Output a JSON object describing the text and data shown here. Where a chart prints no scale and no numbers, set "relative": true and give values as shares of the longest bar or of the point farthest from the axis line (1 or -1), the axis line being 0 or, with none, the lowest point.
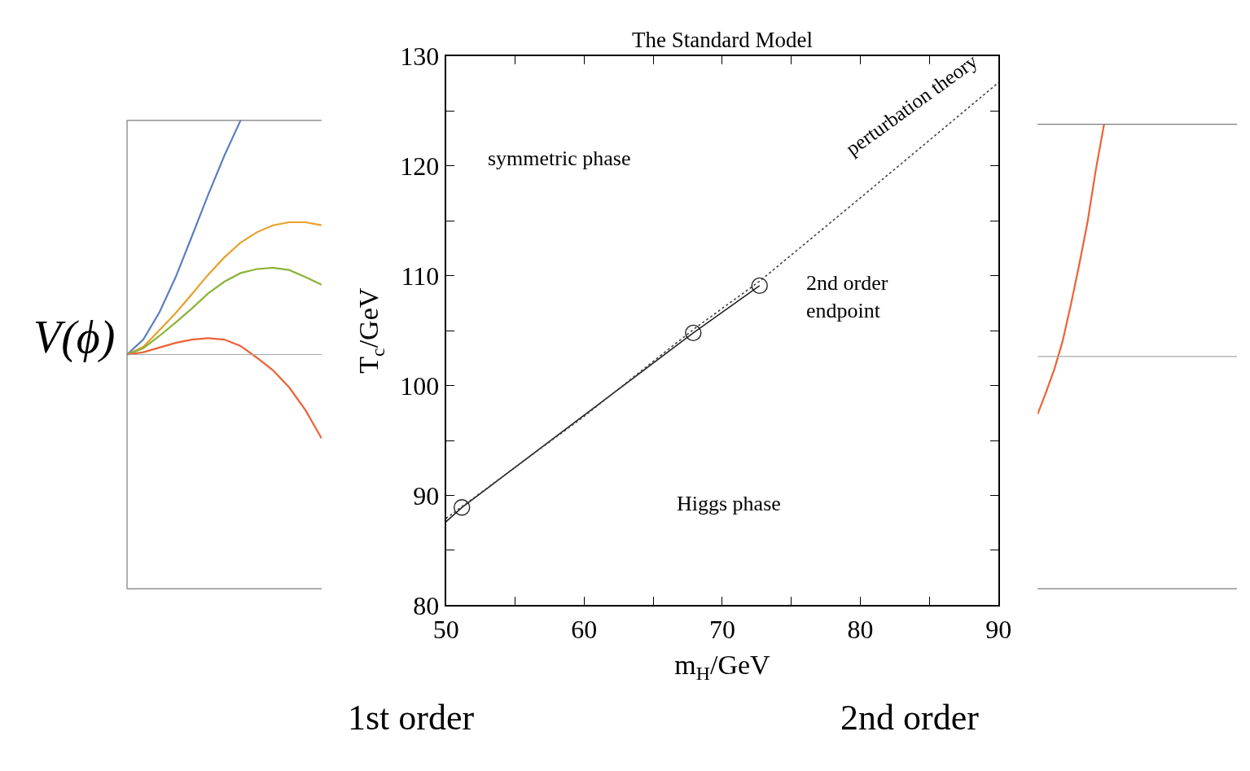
{
  "chart_data": [
    {
      "type": "line",
      "relative": true,
      "ylabel": "V(ϕ)",
      "xlabel": "1st order",
      "categories": [
        null,
        null,
        null,
        null,
        null,
        null,
        null,
        null,
        null,
        null,
        null,
        null,
        null
      ],
      "series": [
        {
          "color": "#5b7fbf",
          "values": [
            0,
            0.064,
            0.181,
            0.331,
            0.505,
            0.682,
            0.849,
            1,
            null,
            null,
            null,
            null,
            null
          ]
        },
        {
          "color": "#e8a02a",
          "values": [
            0,
            0.033,
            0.104,
            0.177,
            0.258,
            0.341,
            0.415,
            0.478,
            0.522,
            0.552,
            0.565,
            0.565,
            0.552
          ]
        },
        {
          "color": "#8db33a",
          "values": [
            0,
            0.027,
            0.08,
            0.137,
            0.197,
            0.261,
            0.311,
            0.348,
            0.365,
            0.371,
            0.361,
            0.331,
            0.298
          ]
        },
        {
          "color": "#ec6236",
          "values": [
            0,
            0.01,
            0.03,
            0.05,
            0.064,
            0.07,
            0.064,
            0.037,
            -0.013,
            -0.067,
            -0.14,
            -0.237,
            -0.358
          ]
        }
      ]
    },
    {
      "type": "line",
      "title": "The Standard Model",
      "xlabel": "m$_{H}$/GeV",
      "ylabel": "T$_{c}$/GeV",
      "xlim": [
        50,
        90
      ],
      "ylim": [
        80,
        130
      ],
      "xticks": [
        50,
        {
          "value": 55,
          "label": null
        },
        60,
        {
          "value": 65,
          "label": null
        },
        70,
        {
          "value": 75,
          "label": null
        },
        80,
        {
          "value": 85,
          "label": null
        },
        90
      ],
      "yticks": [
        80,
        {
          "value": 85,
          "label": null
        },
        90,
        {
          "value": 95,
          "label": null
        },
        100,
        {
          "value": 105,
          "label": null
        },
        110,
        {
          "value": 115,
          "label": null
        },
        120,
        {
          "value": 125,
          "label": null
        },
        130
      ],
      "legend": false,
      "series": [
        {
          "type": "line",
          "color": "#222222",
          "line_style": "solid",
          "marker": "none",
          "x": [
            50,
            51.15,
            67.9,
            72.7
          ],
          "values": [
            87.6,
            88.9,
            104.8,
            109.1
          ]
        },
        {
          "type": "scatter",
          "color": "#222222",
          "marker": "circle",
          "x": [
            51.15,
            67.9,
            72.7
          ],
          "values": [
            88.9,
            104.8,
            109.1
          ]
        },
        {
          "type": "line",
          "name": "perturbation theory",
          "color": "#444444",
          "line_style": "dotted",
          "marker": "none",
          "x": [
            50,
            60,
            68,
            72.7,
            80,
            90
          ],
          "values": [
            87.9,
            97.2,
            105.2,
            109.5,
            117.1,
            127.6
          ]
        }
      ],
      "annotations": [
        "symmetric phase",
        "2nd order\nendpoint",
        "Higgs phase"
      ]
    },
    {
      "type": "line",
      "relative": true,
      "xlabel": "2nd order",
      "categories": [
        null,
        null,
        null,
        null,
        null,
        null,
        null,
        null,
        null,
        null,
        null,
        null,
        null,
        null,
        null,
        null,
        null,
        null,
        null,
        null,
        null,
        null,
        null,
        null,
        null
      ],
      "series": [
        {
          "color": "#ec6236",
          "values": [
            -0.248,
            -0.155,
            -0.056,
            0.065,
            0.223,
            0.394,
            0.577,
            0.803,
            1,
            null,
            null,
            null,
            null,
            null,
            null,
            null,
            null,
            null,
            null,
            null,
            null,
            null,
            null,
            null,
            null
          ]
        }
      ]
    }
  ]
}
